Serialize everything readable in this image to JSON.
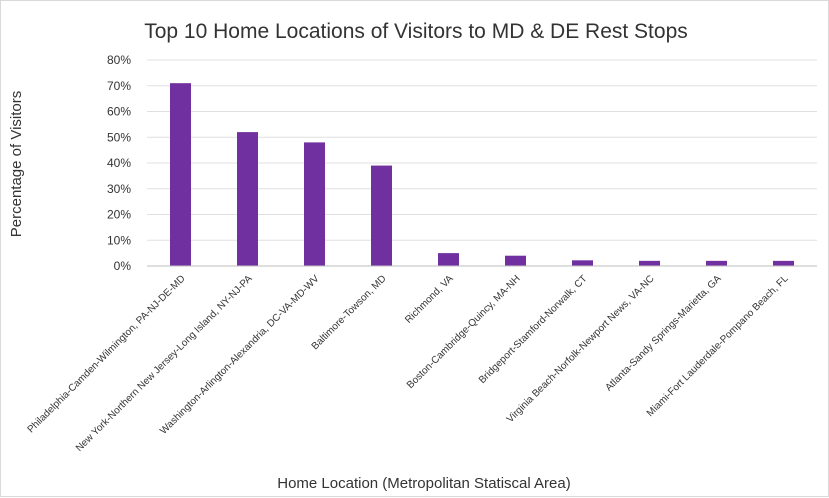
{
  "chart_data": {
    "type": "bar",
    "title": "Top 10 Home Locations of Visitors to MD & DE Rest Stops",
    "xlabel": "Home Location (Metropolitan Statiscal Area)",
    "ylabel": "Percentage of Visitors",
    "ylim": [
      0,
      0.8
    ],
    "yticks": [
      "0%",
      "10%",
      "20%",
      "30%",
      "40%",
      "50%",
      "60%",
      "70%",
      "80%"
    ],
    "grid": "horizontal",
    "legend": "none",
    "bar_color": "#7030a0",
    "categories": [
      "Philadelphia-Camden-Wilmington, PA-NJ-DE-MD",
      "New York-Northern New Jersey-Long Island, NY-NJ-PA",
      "Washington-Arlington-Alexandria, DC-VA-MD-WV",
      "Baltimore-Towson, MD",
      "Richmond, VA",
      "Boston-Cambridge-Quincy, MA-NH",
      "Bridgeport-Stamford-Norwalk, CT",
      "Virginia Beach-Norfolk-Newport News, VA-NC",
      "Atlanta-Sandy Springs-Marietta, GA",
      "Miami-Fort Lauderdale-Pompano Beach, FL"
    ],
    "values": [
      0.71,
      0.52,
      0.48,
      0.39,
      0.05,
      0.04,
      0.022,
      0.02,
      0.02,
      0.02
    ]
  }
}
